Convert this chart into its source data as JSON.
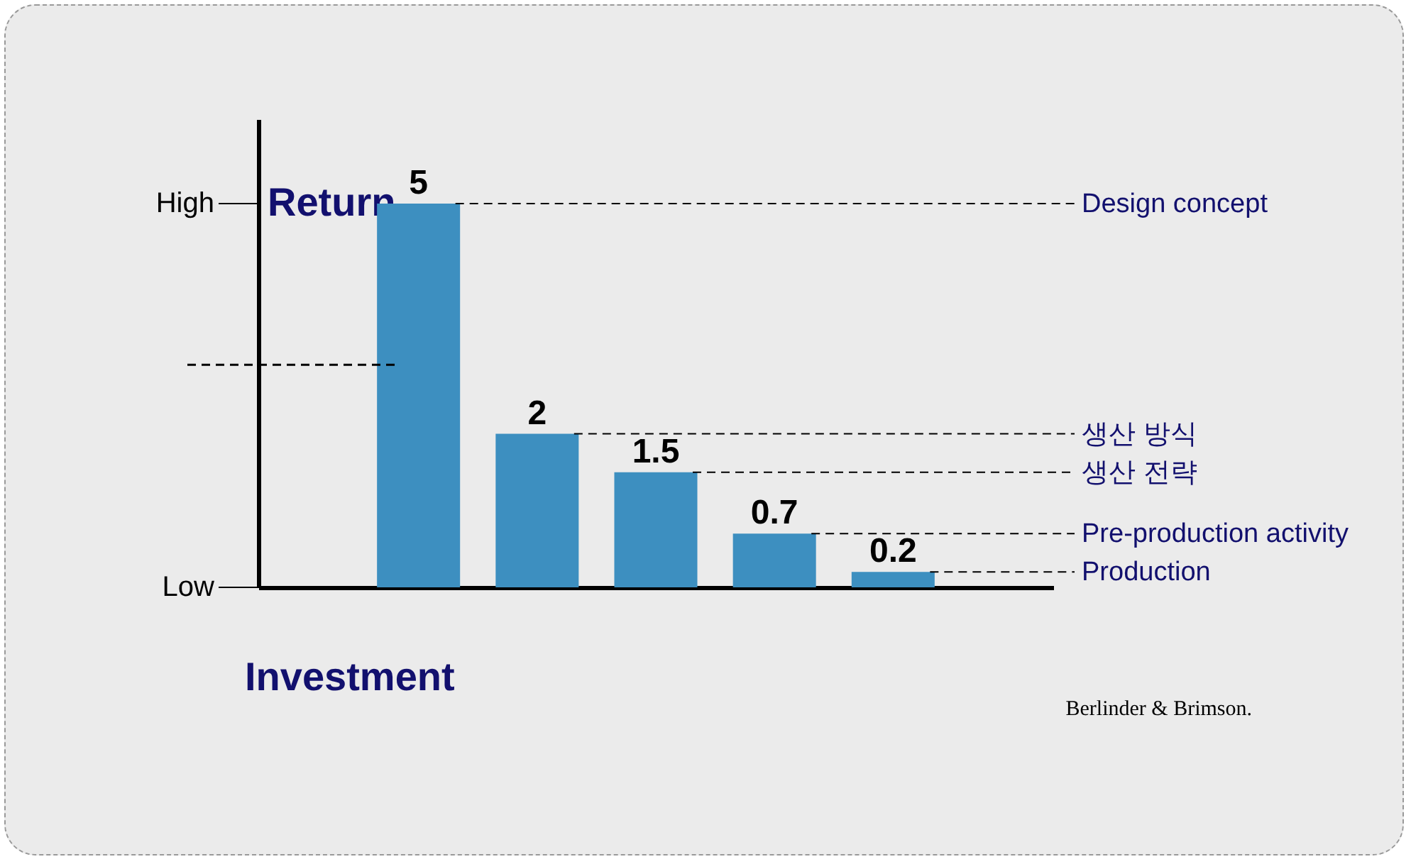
{
  "chart_data": {
    "type": "bar",
    "xlabel": "Investment",
    "ylabel": "Return",
    "categories": [
      null,
      null,
      null,
      null,
      null
    ],
    "values": [
      5,
      2,
      1.5,
      0.7,
      0.2
    ],
    "color": "#3d8fc0",
    "data_labels": true,
    "ylim": [
      0,
      6.1
    ],
    "ref_lines": [
      {
        "axis": "y",
        "value": 2.9,
        "line_style": "dashed",
        "color": "#000000"
      }
    ],
    "annotations": [
      "High",
      "Low",
      "Design concept",
      "생산 방식",
      "생산 전략",
      "Pre-production activity",
      "Production",
      "Berlinder & Brimson."
    ]
  }
}
